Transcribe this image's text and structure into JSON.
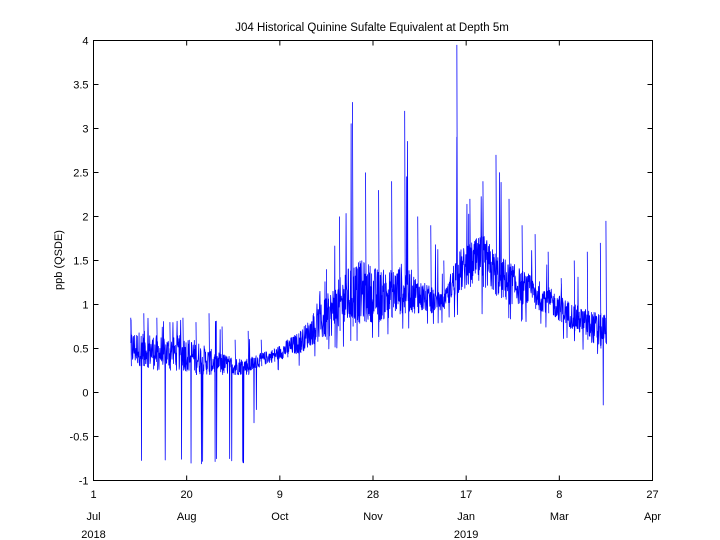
{
  "chart_data": {
    "type": "line",
    "title": "J04 Historical Quinine Sufalte Equivalent at Depth 5m",
    "xlabel": "",
    "ylabel": "ppb (QSDE)",
    "ylim": [
      -1,
      4
    ],
    "yticks": [
      -1,
      -0.5,
      0,
      0.5,
      1,
      1.5,
      2,
      2.5,
      3,
      3.5,
      4
    ],
    "ytick_labels": [
      "-1",
      "-0.5",
      "0",
      "0.5",
      "1",
      "1.5",
      "2",
      "2.5",
      "3",
      "3.5",
      "4"
    ],
    "xlim": [
      "2018-07-01",
      "2019-04-27"
    ],
    "xticks": [
      {
        "date": "2018-07-01",
        "day": "1",
        "month": "Jul",
        "year": "2018"
      },
      {
        "date": "2018-08-20",
        "day": "20",
        "month": "Aug",
        "year": ""
      },
      {
        "date": "2018-10-09",
        "day": "9",
        "month": "Oct",
        "year": ""
      },
      {
        "date": "2018-11-28",
        "day": "28",
        "month": "Nov",
        "year": ""
      },
      {
        "date": "2019-01-17",
        "day": "17",
        "month": "Jan",
        "year": "2019"
      },
      {
        "date": "2019-03-08",
        "day": "8",
        "month": "Mar",
        "year": ""
      },
      {
        "date": "2019-04-27",
        "day": "27",
        "month": "Apr",
        "year": ""
      }
    ],
    "grid": false,
    "legend": "none",
    "series": [
      {
        "color": "#0000ff",
        "x": [
          "2018-07-21",
          "2018-07-28",
          "2018-08-04",
          "2018-08-11",
          "2018-08-18",
          "2018-08-25",
          "2018-09-01",
          "2018-09-08",
          "2018-09-15",
          "2018-09-22",
          "2018-09-29",
          "2018-10-06",
          "2018-10-13",
          "2018-10-20",
          "2018-10-27",
          "2018-11-03",
          "2018-11-10",
          "2018-11-17",
          "2018-11-24",
          "2018-12-01",
          "2018-12-08",
          "2018-12-15",
          "2018-12-22",
          "2018-12-29",
          "2019-01-05",
          "2019-01-12",
          "2019-01-19",
          "2019-01-26",
          "2019-02-02",
          "2019-02-09",
          "2019-02-16",
          "2019-02-23",
          "2019-03-02",
          "2019-03-09",
          "2019-03-16",
          "2019-03-23",
          "2019-03-30",
          "2019-04-02"
        ],
        "y_low": [
          -0.8,
          -0.8,
          -0.8,
          -0.8,
          -0.8,
          -0.85,
          -0.8,
          -0.8,
          -0.8,
          -0.8,
          0.15,
          0.2,
          0.25,
          0.3,
          0.4,
          0.45,
          0.5,
          0.55,
          0.6,
          0.6,
          0.65,
          0.7,
          0.7,
          0.75,
          0.8,
          0.85,
          0.85,
          0.85,
          0.85,
          0.8,
          0.8,
          0.8,
          0.7,
          0.6,
          0.55,
          0.45,
          0.4,
          -0.7
        ],
        "y_high": [
          0.85,
          0.9,
          0.85,
          0.8,
          0.85,
          0.8,
          0.9,
          0.75,
          0.6,
          0.7,
          0.6,
          0.5,
          0.6,
          0.7,
          0.9,
          1.4,
          2.0,
          3.3,
          2.5,
          2.3,
          2.4,
          3.2,
          2.0,
          1.9,
          1.5,
          3.95,
          2.2,
          2.4,
          2.7,
          2.2,
          1.9,
          1.8,
          1.6,
          1.3,
          1.5,
          1.6,
          1.7,
          1.95
        ],
        "y_typ_low": [
          0.3,
          0.3,
          0.25,
          0.25,
          0.25,
          0.2,
          0.2,
          0.2,
          0.2,
          0.2,
          0.3,
          0.35,
          0.4,
          0.45,
          0.55,
          0.6,
          0.7,
          0.75,
          0.8,
          0.8,
          0.85,
          0.9,
          0.9,
          0.9,
          0.95,
          1.1,
          1.2,
          1.2,
          1.1,
          1.0,
          1.0,
          0.95,
          0.9,
          0.8,
          0.7,
          0.6,
          0.5,
          0.55
        ],
        "y_typ_high": [
          0.7,
          0.7,
          0.65,
          0.65,
          0.65,
          0.6,
          0.5,
          0.45,
          0.4,
          0.4,
          0.45,
          0.5,
          0.6,
          0.7,
          0.9,
          1.1,
          1.3,
          1.5,
          1.5,
          1.4,
          1.4,
          1.5,
          1.3,
          1.2,
          1.1,
          1.6,
          1.7,
          1.8,
          1.6,
          1.5,
          1.4,
          1.3,
          1.2,
          1.1,
          1.0,
          0.95,
          0.9,
          0.9
        ]
      }
    ]
  }
}
